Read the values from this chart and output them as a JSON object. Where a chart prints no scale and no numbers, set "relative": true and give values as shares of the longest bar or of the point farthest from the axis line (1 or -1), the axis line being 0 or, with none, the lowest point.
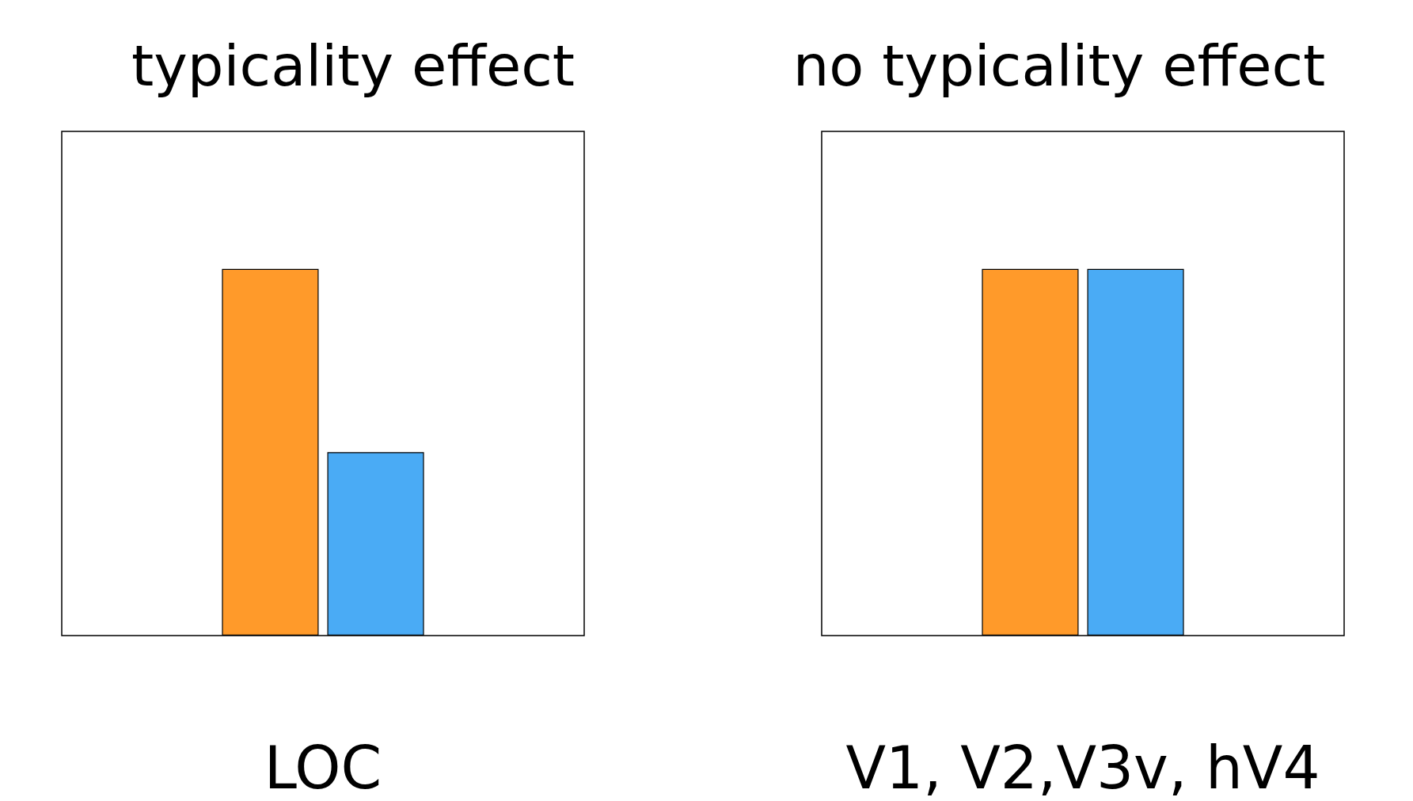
{
  "chart_data": [
    {
      "type": "bar",
      "title": "typicality effect",
      "xlabel": "LOC",
      "relative": true,
      "categories": [
        null
      ],
      "series": [
        {
          "color": "#ff9a2a",
          "values": [
            1
          ]
        },
        {
          "color": "#4aabf5",
          "values": [
            0.5
          ]
        }
      ]
    },
    {
      "type": "bar",
      "title": "no typicality effect",
      "xlabel": "V1, V2,V3v, hV4",
      "relative": true,
      "categories": [
        null
      ],
      "series": [
        {
          "color": "#ff9a2a",
          "values": [
            1
          ]
        },
        {
          "color": "#4aabf5",
          "values": [
            1
          ]
        }
      ]
    }
  ]
}
